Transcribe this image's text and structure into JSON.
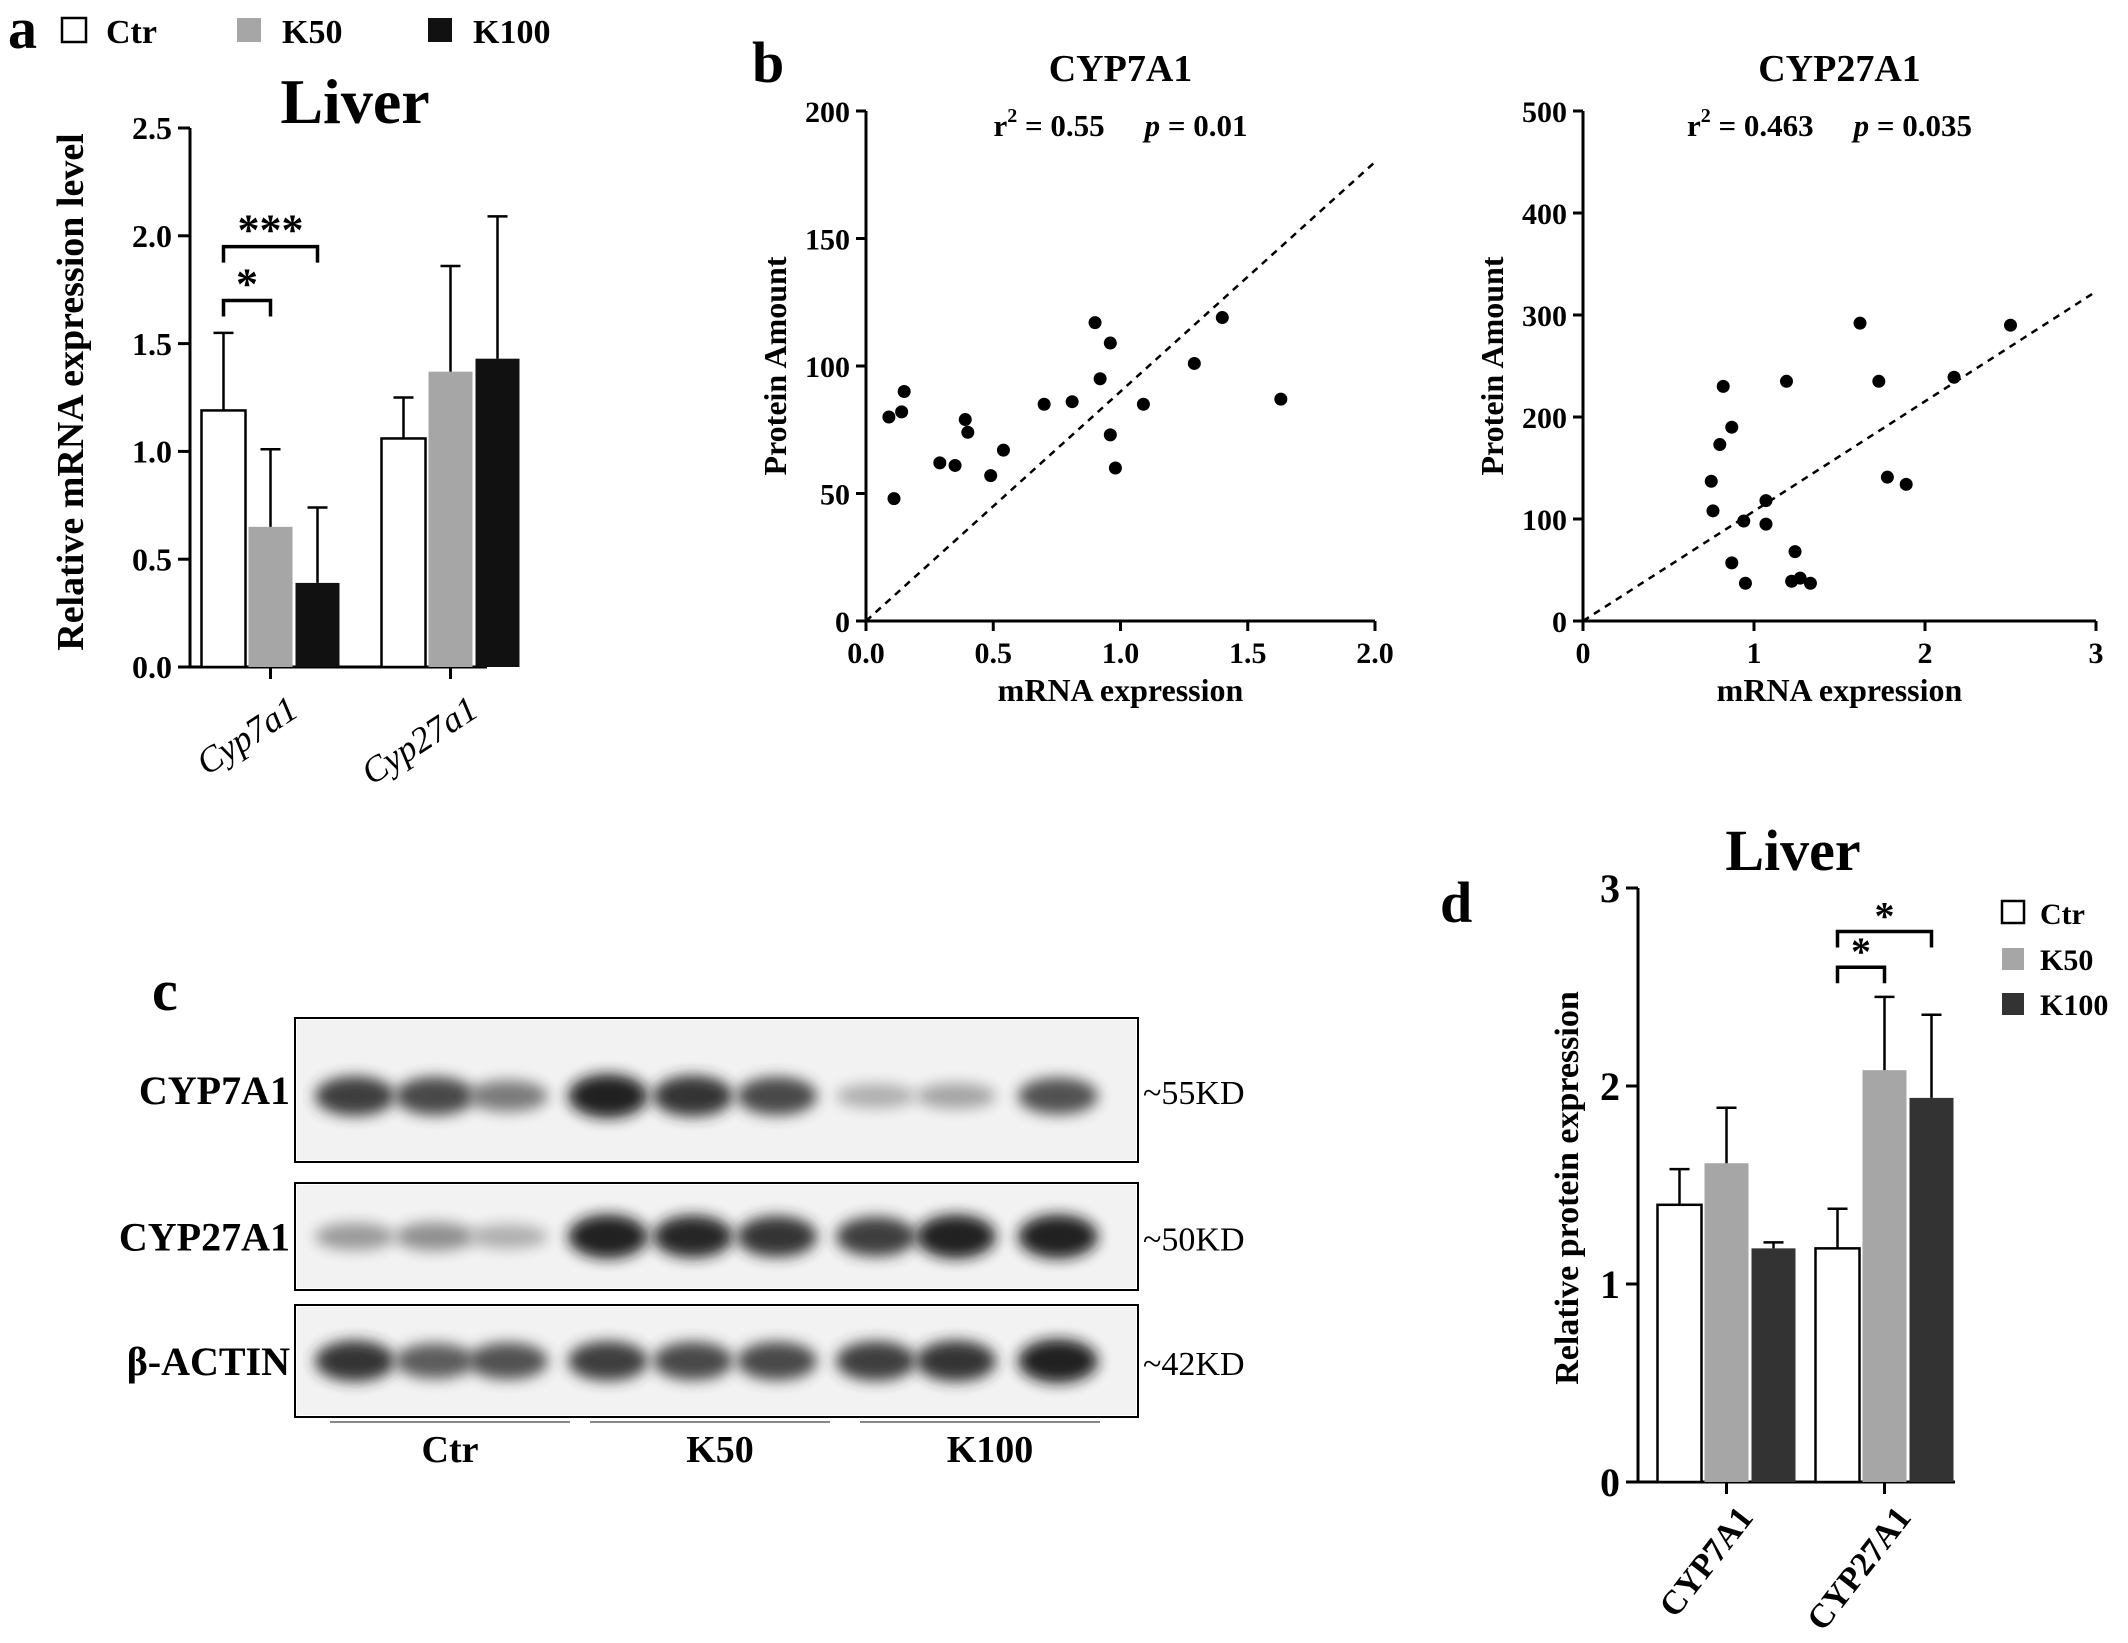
{
  "colors": {
    "ctr": "#ffffff",
    "k50": "#a6a6a6",
    "k100": "#111111",
    "k100_d": "#333333"
  },
  "panels": {
    "a": {
      "letter": "a"
    },
    "b": {
      "letter": "b"
    },
    "c": {
      "letter": "c"
    },
    "d": {
      "letter": "d"
    }
  },
  "chart_data": [
    {
      "id": "a",
      "type": "bar",
      "title": "Liver",
      "ylabel": "Relative mRNA expression level",
      "ylim": [
        0,
        2.5
      ],
      "yticks": [
        "0.0",
        "0.5",
        "1.0",
        "1.5",
        "2.0",
        "2.5"
      ],
      "categories": [
        "Cyp7a1",
        "Cyp27a1"
      ],
      "legend": [
        "Ctr",
        "K50",
        "K100"
      ],
      "legend_position": "top-left",
      "series": [
        {
          "name": "Ctr",
          "values": [
            1.19,
            1.06
          ],
          "errors": [
            0.36,
            0.19
          ]
        },
        {
          "name": "K50",
          "values": [
            0.65,
            1.37
          ],
          "errors": [
            0.36,
            0.49
          ]
        },
        {
          "name": "K100",
          "values": [
            0.39,
            1.43
          ],
          "errors": [
            0.35,
            0.66
          ]
        }
      ],
      "significance": [
        {
          "label": "*",
          "category": 0,
          "from": 0,
          "to": 1,
          "y": 1.7
        },
        {
          "label": "***",
          "category": 0,
          "from": 0,
          "to": 2,
          "y": 1.95
        }
      ]
    },
    {
      "id": "b1",
      "type": "scatter",
      "title": "CYP7A1",
      "stats": {
        "r2_label": "r",
        "r2_sup": "2",
        "r2_value": " = 0.55",
        "p_label": "p",
        "p_value": " = 0.01"
      },
      "xlabel": "mRNA expression",
      "ylabel": "Protein Amount",
      "xlim": [
        0,
        2.0
      ],
      "ylim": [
        0,
        200
      ],
      "xticks": [
        "0.0",
        "0.5",
        "1.0",
        "1.5",
        "2.0"
      ],
      "yticks": [
        "0",
        "50",
        "100",
        "150",
        "200"
      ],
      "fit_line": {
        "x": [
          0,
          2.0
        ],
        "y": [
          0,
          180
        ]
      },
      "points": [
        [
          0.09,
          80
        ],
        [
          0.11,
          48
        ],
        [
          0.14,
          82
        ],
        [
          0.15,
          90
        ],
        [
          0.29,
          62
        ],
        [
          0.35,
          61
        ],
        [
          0.39,
          79
        ],
        [
          0.4,
          74
        ],
        [
          0.49,
          57
        ],
        [
          0.54,
          67
        ],
        [
          0.7,
          85
        ],
        [
          0.81,
          86
        ],
        [
          0.9,
          117
        ],
        [
          0.92,
          95
        ],
        [
          0.96,
          109
        ],
        [
          0.96,
          73
        ],
        [
          0.98,
          60
        ],
        [
          1.09,
          85
        ],
        [
          1.29,
          101
        ],
        [
          1.4,
          119
        ],
        [
          1.63,
          87
        ]
      ]
    },
    {
      "id": "b2",
      "type": "scatter",
      "title": "CYP27A1",
      "stats": {
        "r2_label": "r",
        "r2_sup": "2",
        "r2_value": " = 0.463",
        "p_label": "p",
        "p_value": " = 0.035"
      },
      "xlabel": "mRNA expression",
      "ylabel": "Protein Amount",
      "xlim": [
        0,
        3
      ],
      "ylim": [
        0,
        500
      ],
      "xticks": [
        "0",
        "1",
        "2",
        "3"
      ],
      "yticks": [
        "0",
        "100",
        "200",
        "300",
        "400",
        "500"
      ],
      "fit_line": {
        "x": [
          0,
          3
        ],
        "y": [
          0,
          323
        ]
      },
      "points": [
        [
          0.75,
          137
        ],
        [
          0.76,
          108
        ],
        [
          0.8,
          173
        ],
        [
          0.82,
          230
        ],
        [
          0.87,
          190
        ],
        [
          0.87,
          57
        ],
        [
          0.94,
          98
        ],
        [
          0.95,
          37
        ],
        [
          1.07,
          95
        ],
        [
          1.07,
          118
        ],
        [
          1.19,
          235
        ],
        [
          1.22,
          39
        ],
        [
          1.24,
          68
        ],
        [
          1.27,
          42
        ],
        [
          1.33,
          37
        ],
        [
          1.62,
          292
        ],
        [
          1.73,
          235
        ],
        [
          1.78,
          141
        ],
        [
          1.89,
          134
        ],
        [
          2.17,
          239
        ],
        [
          2.5,
          290
        ]
      ]
    },
    {
      "id": "d",
      "type": "bar",
      "title": "Liver",
      "ylabel": "Relative protein expression",
      "ylim": [
        0,
        3
      ],
      "yticks": [
        "0",
        "1",
        "2",
        "3"
      ],
      "categories": [
        "CYP7A1",
        "CYP27A1"
      ],
      "legend": [
        "Ctr",
        "K50",
        "K100"
      ],
      "legend_position": "right",
      "series": [
        {
          "name": "Ctr",
          "values": [
            1.4,
            1.18
          ],
          "errors": [
            0.18,
            0.2
          ]
        },
        {
          "name": "K50",
          "values": [
            1.61,
            2.08
          ],
          "errors": [
            0.28,
            0.37
          ]
        },
        {
          "name": "K100",
          "values": [
            1.18,
            1.94
          ],
          "errors": [
            0.03,
            0.42
          ]
        }
      ],
      "significance": [
        {
          "label": "*",
          "category": 1,
          "from": 0,
          "to": 1,
          "y": 2.6
        },
        {
          "label": "*",
          "category": 1,
          "from": 0,
          "to": 2,
          "y": 2.78
        }
      ]
    }
  ],
  "blot": {
    "rows": [
      {
        "label": "CYP7A1",
        "size": "~55KD"
      },
      {
        "label": "CYP27A1",
        "size": "~50KD"
      },
      {
        "label": "β-ACTIN",
        "size": "~42KD"
      }
    ],
    "groups": [
      "Ctr",
      "K50",
      "K100"
    ],
    "intensity": [
      [
        0.85,
        0.8,
        0.55,
        1.0,
        0.9,
        0.8,
        0.3,
        0.35,
        0.75
      ],
      [
        0.4,
        0.45,
        0.3,
        1.0,
        0.95,
        0.9,
        0.85,
        1.0,
        1.0
      ],
      [
        0.9,
        0.7,
        0.75,
        0.85,
        0.8,
        0.8,
        0.85,
        0.9,
        1.0
      ]
    ]
  }
}
